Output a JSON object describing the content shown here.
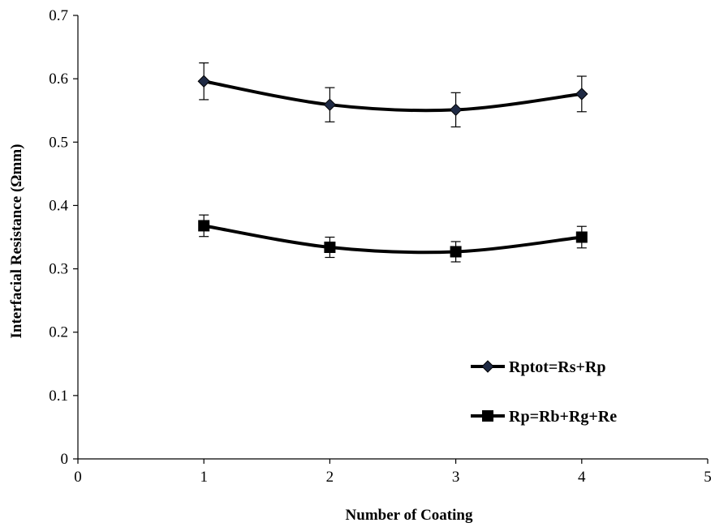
{
  "chart_data": {
    "type": "line",
    "title": "",
    "xlabel": "Number of Coating",
    "ylabel": "Interfacial Resistance (Ωmm)",
    "xlim": [
      0,
      5
    ],
    "ylim": [
      0,
      0.7
    ],
    "xticks": [
      "0",
      "1",
      "2",
      "3",
      "4",
      "5"
    ],
    "yticks": [
      "0",
      "0.1",
      "0.2",
      "0.3",
      "0.4",
      "0.5",
      "0.6",
      "0.7"
    ],
    "grid": false,
    "legend_position": "bottom-right",
    "series": [
      {
        "name": "Rptot=Rs+Rp",
        "marker": "diamond",
        "color": "#000000",
        "x": [
          1,
          2,
          3,
          4
        ],
        "y": [
          0.596,
          0.559,
          0.551,
          0.576
        ],
        "error": [
          0.029,
          0.027,
          0.027,
          0.028
        ]
      },
      {
        "name": "Rp=Rb+Rg+Re",
        "marker": "square",
        "color": "#000000",
        "x": [
          1,
          2,
          3,
          4
        ],
        "y": [
          0.368,
          0.334,
          0.327,
          0.35
        ],
        "error": [
          0.017,
          0.016,
          0.016,
          0.017
        ]
      }
    ]
  }
}
